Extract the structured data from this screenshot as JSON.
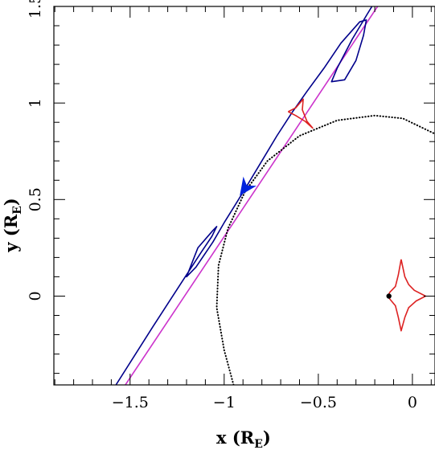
{
  "chart_data": {
    "type": "line",
    "title": "",
    "xlabel": {
      "main": "x (R",
      "sub": "E",
      "tail": ")"
    },
    "ylabel": {
      "main": "y (R",
      "sub": "E",
      "tail": ")"
    },
    "xlim": [
      -1.905,
      0.12
    ],
    "ylim": [
      -0.46,
      1.5
    ],
    "x_ticks": [
      {
        "value": -1.5,
        "label": "−1.5"
      },
      {
        "value": -1.0,
        "label": "−1"
      },
      {
        "value": -0.5,
        "label": "−0.5"
      },
      {
        "value": 0.0,
        "label": "0"
      }
    ],
    "y_ticks": [
      {
        "value": 0.0,
        "label": "0"
      },
      {
        "value": 0.5,
        "label": "0.5"
      },
      {
        "value": 1.0,
        "label": "1"
      },
      {
        "value": 1.5,
        "label": "1.5"
      }
    ],
    "minor_tick_step": 0.1,
    "grid": false,
    "series": [
      {
        "style": "solid",
        "color": "#cc33cc",
        "points": [
          [
            -1.525,
            -0.46
          ],
          [
            -0.185,
            1.5
          ]
        ]
      },
      {
        "style": "solid",
        "color": "#00008b",
        "points": [
          [
            -1.575,
            -0.46
          ],
          [
            -1.38,
            -0.16
          ],
          [
            -1.22,
            0.08
          ],
          [
            -1.12,
            0.23
          ],
          [
            -1.065,
            0.31
          ],
          [
            -1.04,
            0.36
          ],
          [
            -1.06,
            0.34
          ],
          [
            -1.14,
            0.25
          ],
          [
            -1.2,
            0.1
          ],
          [
            -1.15,
            0.15
          ],
          [
            -1.06,
            0.28
          ],
          [
            -1.0,
            0.38
          ],
          [
            -0.93,
            0.49
          ],
          [
            -0.88,
            0.57
          ],
          [
            -0.8,
            0.7
          ],
          [
            -0.72,
            0.83
          ],
          [
            -0.64,
            0.95
          ],
          [
            -0.56,
            1.06
          ],
          [
            -0.47,
            1.18
          ],
          [
            -0.38,
            1.31
          ],
          [
            -0.28,
            1.42
          ],
          [
            -0.245,
            1.43
          ],
          [
            -0.26,
            1.35
          ],
          [
            -0.3,
            1.22
          ],
          [
            -0.36,
            1.12
          ],
          [
            -0.43,
            1.11
          ],
          [
            -0.4,
            1.18
          ],
          [
            -0.32,
            1.33
          ],
          [
            -0.24,
            1.46
          ],
          [
            -0.215,
            1.5
          ]
        ]
      },
      {
        "style": "dotted",
        "color": "#000000",
        "points": [
          [
            -0.95,
            -0.46
          ],
          [
            -1.0,
            -0.28
          ],
          [
            -1.04,
            -0.06
          ],
          [
            -1.03,
            0.16
          ],
          [
            -0.98,
            0.35
          ],
          [
            -0.89,
            0.54
          ],
          [
            -0.77,
            0.7
          ],
          [
            -0.6,
            0.83
          ],
          [
            -0.4,
            0.91
          ],
          [
            -0.2,
            0.935
          ],
          [
            -0.05,
            0.92
          ],
          [
            0.12,
            0.84
          ]
        ]
      },
      {
        "style": "solid",
        "color": "#dd2222",
        "points": [
          [
            -0.66,
            0.955
          ],
          [
            -0.62,
            0.975
          ],
          [
            -0.58,
            1.02
          ],
          [
            -0.585,
            0.965
          ],
          [
            -0.56,
            0.905
          ],
          [
            -0.53,
            0.87
          ],
          [
            -0.57,
            0.905
          ],
          [
            -0.62,
            0.935
          ],
          [
            -0.66,
            0.955
          ]
        ]
      },
      {
        "style": "solid",
        "color": "#dd2222",
        "points": [
          [
            -0.06,
            0.19
          ],
          [
            -0.04,
            0.1
          ],
          [
            -0.02,
            0.06
          ],
          [
            0.01,
            0.03
          ],
          [
            0.07,
            0.0
          ],
          [
            0.02,
            -0.025
          ],
          [
            -0.02,
            -0.06
          ],
          [
            -0.04,
            -0.11
          ],
          [
            -0.06,
            -0.18
          ],
          [
            -0.075,
            -0.11
          ],
          [
            -0.09,
            -0.05
          ],
          [
            -0.12,
            -0.015
          ],
          [
            -0.13,
            0.0
          ],
          [
            -0.12,
            0.02
          ],
          [
            -0.09,
            0.05
          ],
          [
            -0.075,
            0.11
          ],
          [
            -0.06,
            0.19
          ]
        ]
      }
    ],
    "arrow": {
      "color": "#0022dd",
      "at": [
        -0.885,
        0.565
      ],
      "direction": [
        0.57,
        0.82
      ]
    },
    "marker": {
      "color": "#000000",
      "at": [
        -0.125,
        0.0
      ]
    }
  }
}
